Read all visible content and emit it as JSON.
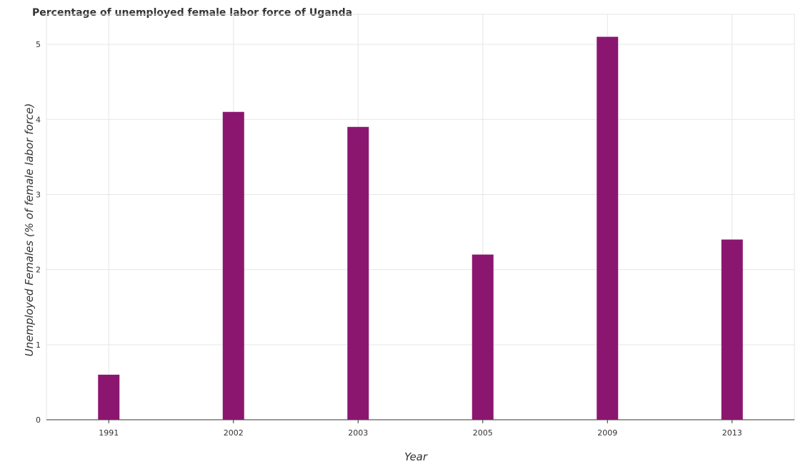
{
  "title": "Percentage of unemployed female labor force of Uganda",
  "chart_data": {
    "type": "bar",
    "title": "Percentage of unemployed female labor force of Uganda",
    "xlabel": "Year",
    "ylabel": "Unemployed Females (% of female labor force)",
    "categories": [
      "1991",
      "2002",
      "2003",
      "2005",
      "2009",
      "2013"
    ],
    "values": [
      0.6,
      4.1,
      3.9,
      2.2,
      5.1,
      2.4
    ],
    "ylim": [
      0,
      5.4
    ],
    "yticks": [
      0,
      1,
      2,
      3,
      4,
      5
    ],
    "grid": true,
    "bar_color": "#8b1670",
    "legend": "none"
  }
}
